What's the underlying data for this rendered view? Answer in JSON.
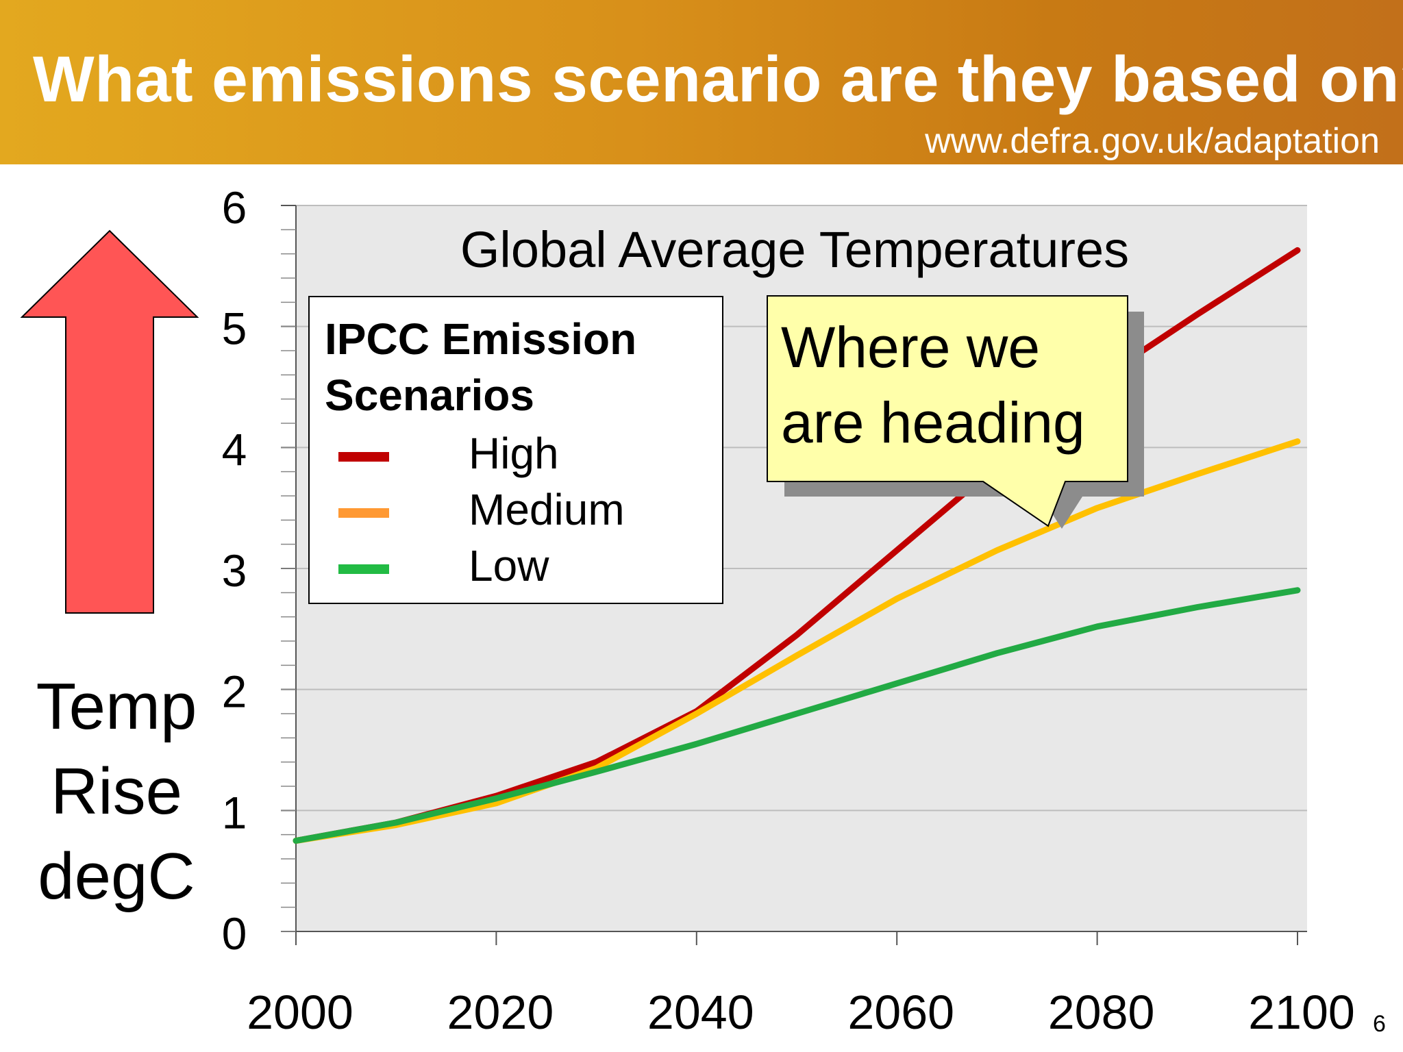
{
  "header": {
    "title": "What emissions scenario are they based on?",
    "url": "www.defra.gov.uk/adaptation"
  },
  "slide_number": "6",
  "y_axis_label_lines": [
    "Temp",
    "Rise",
    "degC"
  ],
  "colors": {
    "header_start": "#e3a81f",
    "header_end": "#c2701a",
    "arrow": "#ff5555",
    "plot_background": "#e8e8e8",
    "callout": "#ffffaa",
    "high": "#c00000",
    "medium": "#ffc000",
    "low": "#22aa44"
  },
  "callout": {
    "text": "Where we are heading"
  },
  "legend": {
    "title_lines": [
      "IPCC Emission",
      "Scenarios"
    ],
    "items": [
      {
        "label": "High",
        "color": "#c00000"
      },
      {
        "label": "Medium",
        "color": "#ff9933"
      },
      {
        "label": "Low",
        "color": "#22bb44"
      }
    ]
  },
  "chart_data": {
    "type": "line",
    "title": "Global Average Temperatures",
    "xlabel": "",
    "ylabel": "Temp Rise degC",
    "xlim": [
      2000,
      2100
    ],
    "ylim": [
      0,
      6
    ],
    "x_ticks": [
      2000,
      2020,
      2040,
      2060,
      2080,
      2100
    ],
    "y_ticks": [
      0,
      1,
      2,
      3,
      4,
      5,
      6
    ],
    "grid": true,
    "legend_position": "top-left",
    "series": [
      {
        "name": "High",
        "color": "#c00000",
        "x": [
          2000,
          2010,
          2020,
          2030,
          2040,
          2050,
          2060,
          2070,
          2080,
          2090,
          2100
        ],
        "y": [
          0.75,
          0.9,
          1.12,
          1.4,
          1.82,
          2.45,
          3.15,
          3.85,
          4.55,
          5.1,
          5.63
        ]
      },
      {
        "name": "Medium",
        "color": "#ffc000",
        "x": [
          2000,
          2010,
          2020,
          2030,
          2040,
          2050,
          2060,
          2070,
          2080,
          2090,
          2100
        ],
        "y": [
          0.75,
          0.88,
          1.06,
          1.35,
          1.8,
          2.28,
          2.75,
          3.15,
          3.5,
          3.78,
          4.05
        ]
      },
      {
        "name": "Low",
        "color": "#22aa44",
        "x": [
          2000,
          2010,
          2020,
          2030,
          2040,
          2050,
          2060,
          2070,
          2080,
          2090,
          2100
        ],
        "y": [
          0.75,
          0.9,
          1.1,
          1.32,
          1.55,
          1.8,
          2.05,
          2.3,
          2.52,
          2.68,
          2.82
        ]
      }
    ]
  }
}
